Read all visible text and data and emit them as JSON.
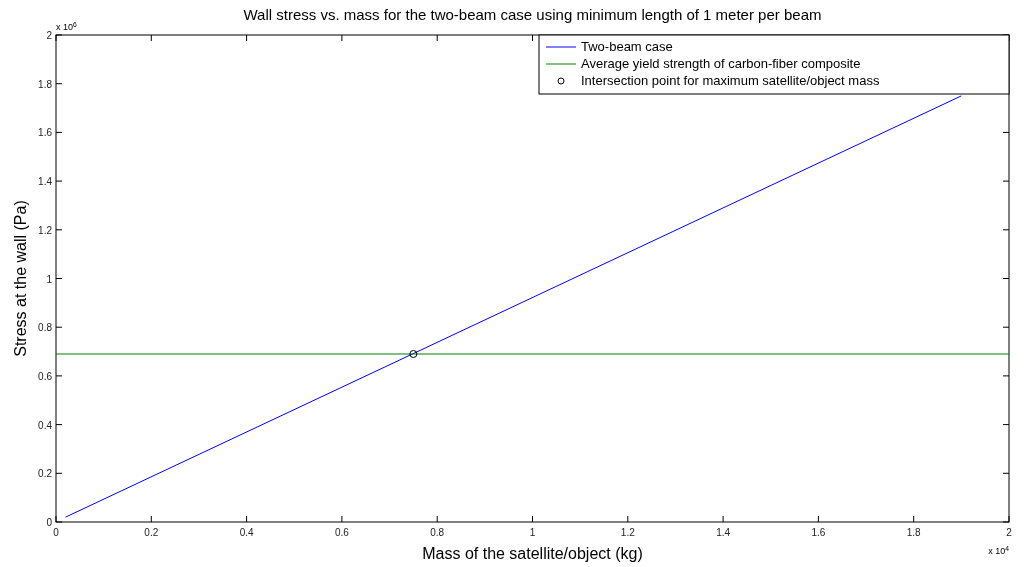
{
  "chart_data": {
    "type": "line",
    "title": "Wall stress vs. mass for the two-beam case using minimum length of 1 meter per beam",
    "xlabel": "Mass of the satellite/object (kg)",
    "ylabel": "Stress at the wall (Pa)",
    "annotations": [
      "x 10$^{4}$",
      "x 10$^{6}$"
    ],
    "xlim": [
      0,
      2
    ],
    "xticks": [
      0,
      0.2,
      0.4,
      0.6,
      0.8,
      1,
      1.2,
      1.4,
      1.6,
      1.8,
      2
    ],
    "ylim": [
      0,
      2
    ],
    "yticks": [
      0,
      0.2,
      0.4,
      0.6,
      0.8,
      1,
      1.2,
      1.4,
      1.6,
      1.8,
      2
    ],
    "grid": false,
    "legend": "top right",
    "series": [
      {
        "name": "Two-beam case",
        "color": "#0000ff",
        "marker": "none",
        "x": [
          0.02,
          1.9
        ],
        "values": [
          0.02,
          1.75
        ]
      },
      {
        "name": "Average yield strength of carbon-fiber composite",
        "color": "#008000",
        "marker": "none",
        "x": [
          0,
          2
        ],
        "values": [
          0.69,
          0.69
        ]
      },
      {
        "name": "Intersection point for maximum satellite/object mass",
        "color": "#000000",
        "type": "scatter",
        "marker": "circle",
        "x": [
          0.75
        ],
        "values": [
          0.69
        ]
      }
    ]
  }
}
